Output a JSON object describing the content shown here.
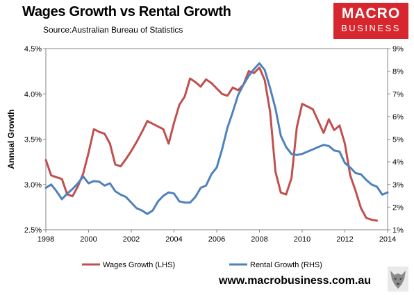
{
  "header": {
    "title": "Wages Growth vs Rental Growth",
    "subtitle": "Source:Australian Bureau of Statistics"
  },
  "logo": {
    "line1": "MACRO",
    "line2": "BUSINESS",
    "color": "#d8262e"
  },
  "footer": {
    "website": "www.macrobusiness.com.au"
  },
  "chart_data": {
    "type": "line",
    "title": "Wages Growth vs Rental Growth",
    "ylabel": "Annual Growth",
    "xlim": [
      1998,
      2014
    ],
    "x_ticks": [
      "1998",
      "2000",
      "2002",
      "2004",
      "2006",
      "2008",
      "2010",
      "2012",
      "2014"
    ],
    "y_left": {
      "ylim": [
        2.5,
        4.5
      ],
      "ticks": [
        "2.5%",
        "3.0%",
        "3.5%",
        "4.0%",
        "4.5%"
      ]
    },
    "y_right": {
      "ylim": [
        1,
        9
      ],
      "ticks": [
        "1%",
        "2%",
        "3%",
        "4%",
        "5%",
        "6%",
        "7%",
        "8%",
        "9%"
      ]
    },
    "grid": false,
    "legend": "bottom",
    "series": [
      {
        "name": "Wages Growth (LHS)",
        "axis": "left",
        "color": "#c0504d",
        "points": [
          [
            1998.0,
            3.27
          ],
          [
            1998.25,
            3.1
          ],
          [
            1998.5,
            3.08
          ],
          [
            1998.75,
            3.06
          ],
          [
            1999.0,
            2.89
          ],
          [
            1999.25,
            2.87
          ],
          [
            1999.5,
            2.98
          ],
          [
            1999.75,
            3.12
          ],
          [
            2000.0,
            3.35
          ],
          [
            2000.25,
            3.61
          ],
          [
            2000.5,
            3.58
          ],
          [
            2000.75,
            3.56
          ],
          [
            2001.0,
            3.45
          ],
          [
            2001.25,
            3.22
          ],
          [
            2001.5,
            3.2
          ],
          [
            2001.75,
            3.28
          ],
          [
            2002.0,
            3.37
          ],
          [
            2002.25,
            3.47
          ],
          [
            2002.5,
            3.58
          ],
          [
            2002.75,
            3.7
          ],
          [
            2003.0,
            3.67
          ],
          [
            2003.25,
            3.64
          ],
          [
            2003.5,
            3.61
          ],
          [
            2003.75,
            3.45
          ],
          [
            2004.0,
            3.68
          ],
          [
            2004.25,
            3.88
          ],
          [
            2004.5,
            3.97
          ],
          [
            2004.75,
            4.17
          ],
          [
            2005.0,
            4.13
          ],
          [
            2005.25,
            4.08
          ],
          [
            2005.5,
            4.16
          ],
          [
            2005.75,
            4.12
          ],
          [
            2006.0,
            4.06
          ],
          [
            2006.25,
            4.0
          ],
          [
            2006.5,
            3.98
          ],
          [
            2006.75,
            4.07
          ],
          [
            2007.0,
            4.04
          ],
          [
            2007.25,
            4.1
          ],
          [
            2007.5,
            4.25
          ],
          [
            2007.75,
            4.23
          ],
          [
            2008.0,
            4.29
          ],
          [
            2008.25,
            4.15
          ],
          [
            2008.5,
            3.8
          ],
          [
            2008.75,
            3.14
          ],
          [
            2009.0,
            2.91
          ],
          [
            2009.25,
            2.89
          ],
          [
            2009.5,
            3.07
          ],
          [
            2009.75,
            3.63
          ],
          [
            2010.0,
            3.89
          ],
          [
            2010.25,
            3.86
          ],
          [
            2010.5,
            3.83
          ],
          [
            2010.75,
            3.7
          ],
          [
            2011.0,
            3.57
          ],
          [
            2011.25,
            3.72
          ],
          [
            2011.5,
            3.6
          ],
          [
            2011.75,
            3.65
          ],
          [
            2012.0,
            3.45
          ],
          [
            2012.25,
            3.1
          ],
          [
            2012.5,
            2.93
          ],
          [
            2012.75,
            2.74
          ],
          [
            2013.0,
            2.63
          ],
          [
            2013.25,
            2.61
          ],
          [
            2013.5,
            2.6
          ]
        ]
      },
      {
        "name": "Rental Growth (RHS)",
        "axis": "right",
        "color": "#4f81bd",
        "points": [
          [
            1998.0,
            2.85
          ],
          [
            1998.25,
            3.0
          ],
          [
            1998.5,
            2.7
          ],
          [
            1998.75,
            2.35
          ],
          [
            1999.0,
            2.6
          ],
          [
            1999.25,
            2.8
          ],
          [
            1999.5,
            3.05
          ],
          [
            1999.75,
            3.35
          ],
          [
            2000.0,
            3.05
          ],
          [
            2000.25,
            3.15
          ],
          [
            2000.5,
            3.12
          ],
          [
            2000.75,
            2.95
          ],
          [
            2001.0,
            3.05
          ],
          [
            2001.25,
            2.7
          ],
          [
            2001.5,
            2.55
          ],
          [
            2001.75,
            2.45
          ],
          [
            2002.0,
            2.2
          ],
          [
            2002.25,
            1.95
          ],
          [
            2002.5,
            1.85
          ],
          [
            2002.75,
            1.7
          ],
          [
            2003.0,
            1.85
          ],
          [
            2003.25,
            2.25
          ],
          [
            2003.5,
            2.5
          ],
          [
            2003.75,
            2.65
          ],
          [
            2004.0,
            2.6
          ],
          [
            2004.25,
            2.25
          ],
          [
            2004.5,
            2.2
          ],
          [
            2004.75,
            2.2
          ],
          [
            2005.0,
            2.45
          ],
          [
            2005.25,
            2.85
          ],
          [
            2005.5,
            2.95
          ],
          [
            2005.75,
            3.45
          ],
          [
            2006.0,
            3.75
          ],
          [
            2006.25,
            4.55
          ],
          [
            2006.5,
            5.5
          ],
          [
            2006.75,
            6.2
          ],
          [
            2007.0,
            6.95
          ],
          [
            2007.25,
            7.4
          ],
          [
            2007.5,
            7.8
          ],
          [
            2007.75,
            8.1
          ],
          [
            2008.0,
            8.35
          ],
          [
            2008.25,
            8.05
          ],
          [
            2008.5,
            7.25
          ],
          [
            2008.75,
            6.35
          ],
          [
            2009.0,
            5.15
          ],
          [
            2009.25,
            4.65
          ],
          [
            2009.5,
            4.35
          ],
          [
            2009.75,
            4.3
          ],
          [
            2010.0,
            4.35
          ],
          [
            2010.25,
            4.45
          ],
          [
            2010.5,
            4.55
          ],
          [
            2010.75,
            4.65
          ],
          [
            2011.0,
            4.75
          ],
          [
            2011.25,
            4.7
          ],
          [
            2011.5,
            4.5
          ],
          [
            2011.75,
            4.45
          ],
          [
            2012.0,
            3.95
          ],
          [
            2012.25,
            3.75
          ],
          [
            2012.5,
            3.5
          ],
          [
            2012.75,
            3.45
          ],
          [
            2013.0,
            3.2
          ],
          [
            2013.25,
            3.0
          ],
          [
            2013.5,
            2.9
          ],
          [
            2013.75,
            2.55
          ],
          [
            2014.0,
            2.65
          ]
        ]
      }
    ]
  }
}
